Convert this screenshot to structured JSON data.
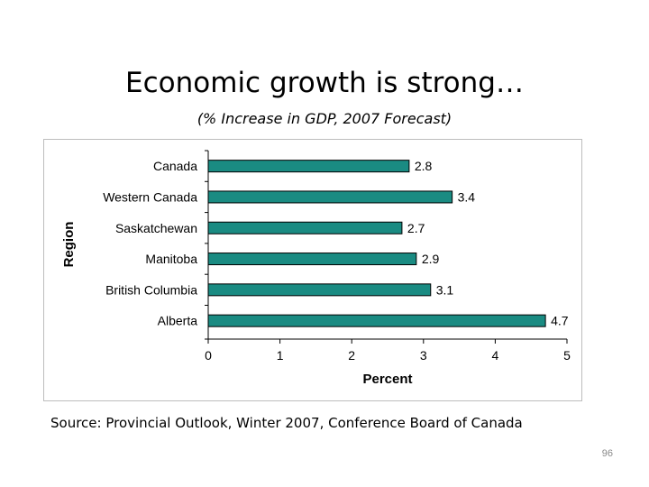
{
  "slide": {
    "title": "Economic growth is strong…",
    "subtitle": "(% Increase in GDP, 2007 Forecast)",
    "source": "Source: Provincial Outlook, Winter 2007, Conference Board of Canada",
    "page_number": "96"
  },
  "colors": {
    "bar_fill": "#1a8b82",
    "bar_stroke": "#000000",
    "grid": "#9a9a9a"
  },
  "chart_data": {
    "type": "bar",
    "orientation": "horizontal",
    "title": "",
    "xlabel": "Percent",
    "ylabel": "Region",
    "categories": [
      "Canada",
      "Western Canada",
      "Saskatchewan",
      "Manitoba",
      "British Columbia",
      "Alberta"
    ],
    "values": [
      2.8,
      3.4,
      2.7,
      2.9,
      3.1,
      4.7
    ],
    "data_labels": [
      "2.8",
      "3.4",
      "2.7",
      "2.9",
      "3.1",
      "4.7"
    ],
    "xlim": [
      0,
      5
    ],
    "xticks": [
      "0",
      "1",
      "2",
      "3",
      "4",
      "5"
    ],
    "grid": false,
    "legend": "none"
  }
}
